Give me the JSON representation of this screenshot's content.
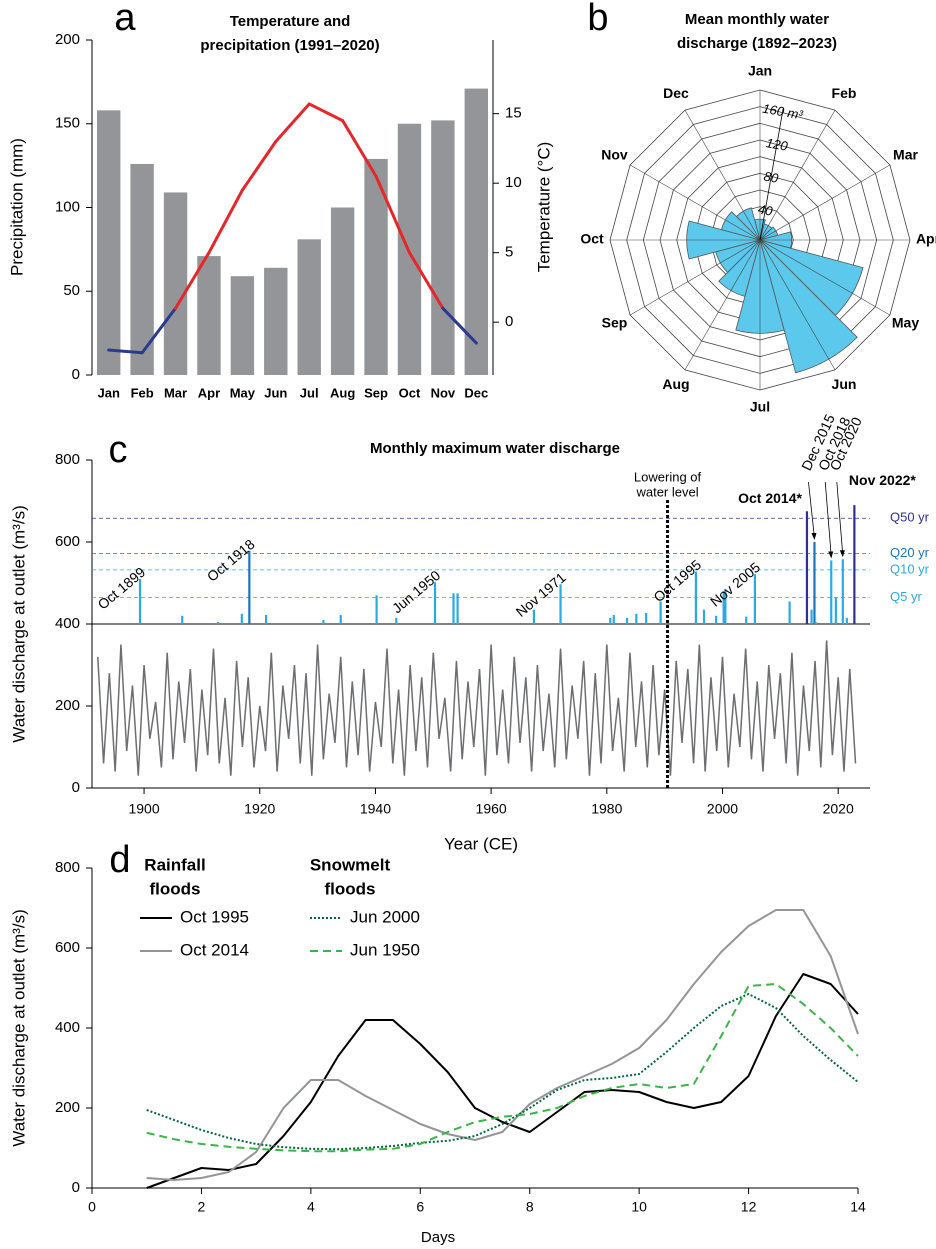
{
  "chart_data": [
    {
      "type": "bar",
      "label": "a",
      "title": [
        "Temperature and",
        "precipitation (1991–2020)"
      ],
      "categories": [
        "Jan",
        "Feb",
        "Mar",
        "Apr",
        "May",
        "Jun",
        "Jul",
        "Aug",
        "Sep",
        "Oct",
        "Nov",
        "Dec"
      ],
      "series": [
        {
          "name": "Precipitation",
          "type": "bar",
          "color": "#939598",
          "values": [
            158,
            126,
            109,
            71,
            59,
            64,
            81,
            100,
            129,
            150,
            152,
            171
          ]
        },
        {
          "name": "Temperature",
          "type": "line",
          "axis": "y2",
          "color": "#e5262b",
          "below_zero_color": "#2b3990",
          "values": [
            -2,
            -2.2,
            1,
            5,
            9.5,
            13,
            15.7,
            14.5,
            10.5,
            5,
            1,
            -1.5
          ]
        }
      ],
      "ylabel": "Precipitation (mm)",
      "y2label": "Temperature (°C)",
      "ylim": [
        0,
        200
      ],
      "yticks": [
        0,
        50,
        100,
        150,
        200
      ],
      "y2lim": [
        -3.8,
        20.3
      ],
      "y2ticks": [
        0,
        5,
        10,
        15
      ]
    },
    {
      "type": "polar",
      "label": "b",
      "title": [
        "Mean monthly water",
        "discharge (1892–2023)"
      ],
      "categories": [
        "Jan",
        "Feb",
        "Mar",
        "Apr",
        "May",
        "Jun",
        "Jul",
        "Aug",
        "Sep",
        "Oct",
        "Nov",
        "Dec"
      ],
      "values": [
        25,
        20,
        22,
        38,
        128,
        165,
        112,
        70,
        55,
        88,
        48,
        40
      ],
      "color": "#5bc8ec",
      "rlim": [
        0,
        180
      ],
      "rticks": [
        40,
        80,
        120,
        {
          "value": 160,
          "label": "160 m³"
        }
      ],
      "minor_rticks": [
        20,
        60,
        100,
        140,
        180
      ]
    },
    {
      "type": "spikes",
      "label": "c",
      "title": "Monthly maximum water discharge",
      "xlabel": "Year (CE)",
      "ylabel": "Water discharge at outlet (m³/s)",
      "xlim": [
        1891,
        2025.5
      ],
      "xticks": [
        1900,
        1920,
        1940,
        1960,
        1980,
        2000,
        2020
      ],
      "ylim": [
        0,
        800
      ],
      "yticks": [
        0,
        200,
        400,
        600,
        800
      ],
      "x": [
        1892,
        1893,
        1894,
        1895,
        1896,
        1897,
        1898,
        1899,
        1900,
        1901,
        1902,
        1903,
        1904,
        1905,
        1906,
        1907,
        1908,
        1909,
        1910,
        1911,
        1912,
        1913,
        1914,
        1915,
        1916,
        1917,
        1918,
        1919,
        1920,
        1921,
        1922,
        1923,
        1924,
        1925,
        1926,
        1927,
        1928,
        1929,
        1930,
        1931,
        1932,
        1933,
        1934,
        1935,
        1936,
        1937,
        1938,
        1939,
        1940,
        1941,
        1942,
        1943,
        1944,
        1945,
        1946,
        1947,
        1948,
        1949,
        1950,
        1951,
        1952,
        1953,
        1954,
        1955,
        1956,
        1957,
        1958,
        1959,
        1960,
        1961,
        1962,
        1963,
        1964,
        1965,
        1966,
        1967,
        1968,
        1969,
        1970,
        1971,
        1972,
        1973,
        1974,
        1975,
        1976,
        1977,
        1978,
        1979,
        1980,
        1981,
        1982,
        1983,
        1984,
        1985,
        1986,
        1987,
        1988,
        1989,
        1990,
        1991,
        1992,
        1993,
        1994,
        1995,
        1996,
        1997,
        1998,
        1999,
        2000,
        2001,
        2002,
        2003,
        2004,
        2005,
        2006,
        2007,
        2008,
        2009,
        2010,
        2011,
        2012,
        2013,
        2014,
        2015,
        2016,
        2017,
        2018,
        2019,
        2020,
        2021,
        2022,
        2023
      ],
      "values": [
        320,
        60,
        280,
        40,
        350,
        90,
        250,
        30,
        300,
        120,
        210,
        50,
        330,
        70,
        260,
        110,
        290,
        40,
        240,
        80,
        340,
        60,
        220,
        30,
        310,
        100,
        270,
        50,
        200,
        90,
        330,
        40,
        250,
        120,
        300,
        60,
        280,
        30,
        350,
        70,
        230,
        110,
        320,
        50,
        260,
        80,
        290,
        40,
        210,
        100,
        340,
        60,
        240,
        30,
        300,
        90,
        270,
        50,
        330,
        120,
        220,
        40,
        310,
        70,
        260,
        100,
        290,
        30,
        350,
        80,
        240,
        60,
        320,
        110,
        270,
        40,
        300,
        90,
        230,
        50,
        340,
        70,
        250,
        120,
        310,
        30,
        280,
        60,
        350,
        90,
        220,
        40,
        330,
        100,
        260,
        50,
        300,
        80,
        240,
        30,
        310,
        110,
        290,
        60,
        350,
        40,
        270,
        90,
        320,
        50,
        230,
        100,
        340,
        70,
        260,
        40,
        300,
        120,
        280,
        60,
        330,
        30,
        250,
        90,
        310,
        50,
        360,
        80,
        270,
        40,
        290,
        60
      ],
      "color": "#6d6e71",
      "spike_base": 400,
      "spike_color": "#29abe2",
      "spikes_x": [
        1899.3,
        1906.6,
        1912.8,
        1916.9,
        1918.2,
        1921.1,
        1931.0,
        1934.0,
        1940.2,
        1943.6,
        1950.3,
        1953.5,
        1954.2,
        1967.4,
        1972.0,
        1980.6,
        1981.2,
        1983.5,
        1985.1,
        1986.8,
        1989.3,
        1995.4,
        1996.8,
        1998.9,
        2000.2,
        2000.5,
        2004.1,
        2005.6,
        2011.6,
        2014.6,
        2015.4,
        2015.9,
        2016.1,
        2018.8,
        2019.6,
        2020.8,
        2021.5,
        2022.8
      ],
      "spikes": [
        510,
        420,
        405,
        425,
        578,
        422,
        410,
        422,
        470,
        415,
        502,
        475,
        475,
        435,
        497,
        415,
        422,
        415,
        425,
        427,
        455,
        528,
        435,
        420,
        480,
        485,
        418,
        522,
        455,
        675,
        435,
        600,
        405,
        555,
        465,
        558,
        415,
        690
      ],
      "thresholds": [
        {
          "name": "Q5 yr",
          "value": 465,
          "color": "#29abe2"
        },
        {
          "name": "Q10 yr",
          "value": 532,
          "color": "#29abe2"
        },
        {
          "name": "Q20 yr",
          "value": 572,
          "color": "#1c75bc"
        },
        {
          "name": "Q50 yr",
          "value": 658,
          "color": "#2e3192"
        }
      ],
      "vline": {
        "x": 1990.5,
        "label": [
          "Lowering of",
          "water level"
        ]
      },
      "annotations": [
        {
          "text": "Oct 1899",
          "x": 1899.3,
          "y": 510,
          "style": "rotated"
        },
        {
          "text": "Oct 1918",
          "x": 1918.2,
          "y": 578,
          "style": "rotated"
        },
        {
          "text": "Jun 1950",
          "x": 1950.3,
          "y": 502,
          "style": "rotated"
        },
        {
          "text": "Nov 1971",
          "x": 1972.0,
          "y": 497,
          "style": "rotated"
        },
        {
          "text": "Oct 1995",
          "x": 1995.4,
          "y": 528,
          "style": "rotated"
        },
        {
          "text": "Nov 2005",
          "x": 2005.6,
          "y": 522,
          "style": "rotated"
        },
        {
          "text": "Oct 2014*",
          "x": 2014.6,
          "y": 675,
          "style": "bold"
        },
        {
          "text": "Dec 2015",
          "x": 2015.9,
          "y": 600,
          "style": "arrow"
        },
        {
          "text": "Oct 2018",
          "x": 2018.8,
          "y": 555,
          "style": "arrow"
        },
        {
          "text": "Oct 2020",
          "x": 2020.8,
          "y": 558,
          "style": "arrow"
        },
        {
          "text": "Nov 2022*",
          "x": 2022.8,
          "y": 690,
          "style": "bold"
        }
      ]
    },
    {
      "type": "line",
      "label": "d",
      "xlabel": "Days",
      "ylabel": "Water discharge at outlet (m³/s)",
      "xlim": [
        0,
        14
      ],
      "xticks": [
        0,
        2,
        4,
        6,
        8,
        10,
        12,
        14
      ],
      "ylim": [
        0,
        800
      ],
      "yticks": [
        0,
        200,
        400,
        600,
        800
      ],
      "legend_titles": [
        [
          "Rainfall",
          "floods"
        ],
        [
          "Snowmelt",
          "floods"
        ]
      ],
      "x": [
        1,
        1.5,
        2,
        2.5,
        3,
        3.5,
        4,
        4.5,
        5,
        5.5,
        6,
        6.5,
        7,
        7.5,
        8,
        8.5,
        9,
        9.5,
        10,
        10.5,
        11,
        11.5,
        12,
        12.5,
        13,
        13.5,
        14
      ],
      "series": [
        {
          "name": "Oct 1995",
          "color": "#000000",
          "dash": "solid",
          "values": [
            0,
            25,
            50,
            45,
            60,
            130,
            215,
            330,
            420,
            420,
            360,
            290,
            200,
            165,
            140,
            190,
            240,
            245,
            240,
            215,
            200,
            215,
            280,
            430,
            535,
            510,
            435
          ]
        },
        {
          "name": "Oct 2014",
          "color": "#939598",
          "dash": "solid",
          "values": [
            25,
            20,
            25,
            40,
            90,
            200,
            270,
            270,
            230,
            195,
            160,
            135,
            120,
            140,
            210,
            250,
            280,
            310,
            350,
            420,
            510,
            590,
            655,
            695,
            695,
            580,
            385
          ]
        },
        {
          "name": "Jun 2000",
          "color": "#006837",
          "dash": "dotted",
          "values": [
            195,
            170,
            145,
            125,
            110,
            102,
            98,
            97,
            100,
            105,
            113,
            118,
            130,
            160,
            200,
            245,
            270,
            275,
            285,
            340,
            400,
            455,
            485,
            450,
            380,
            320,
            265
          ]
        },
        {
          "name": "Jun 1950",
          "color": "#39b54a",
          "dash": "dashed",
          "values": [
            138,
            122,
            110,
            103,
            98,
            94,
            92,
            92,
            96,
            98,
            110,
            140,
            165,
            178,
            185,
            200,
            230,
            250,
            260,
            250,
            260,
            380,
            505,
            510,
            460,
            400,
            330
          ]
        }
      ]
    }
  ]
}
